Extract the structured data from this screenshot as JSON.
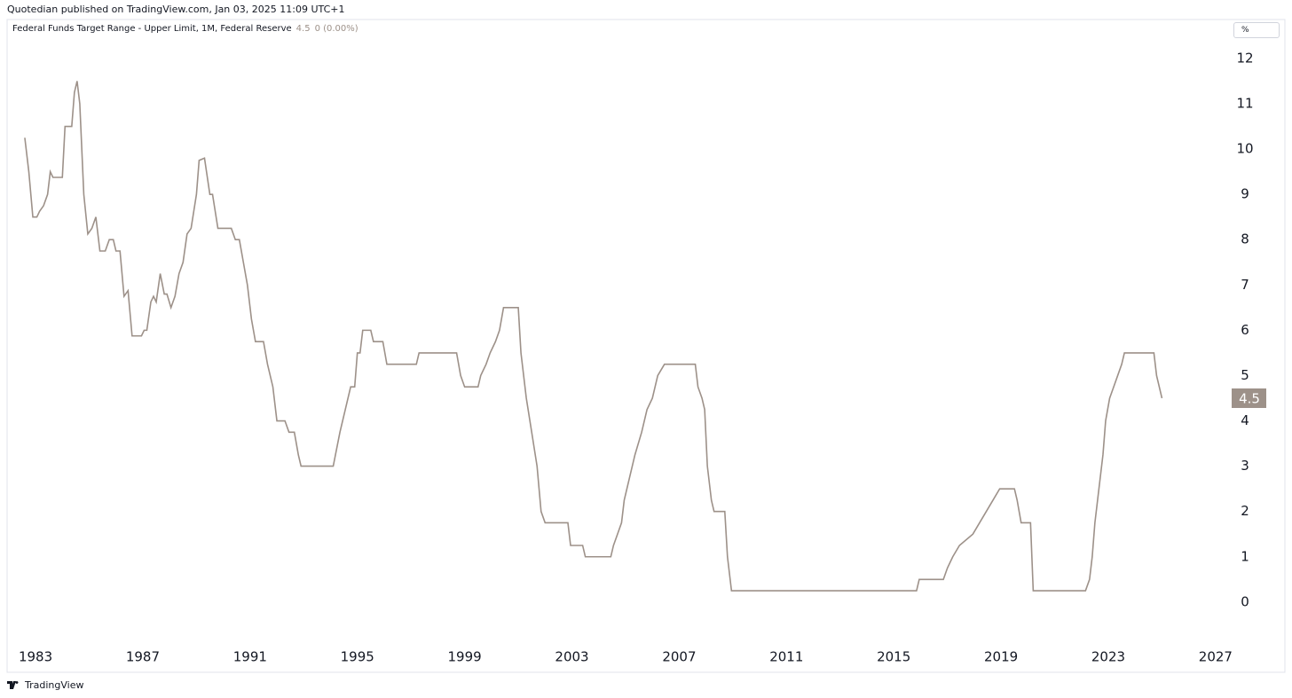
{
  "header": {
    "text": "Quotedian published on TradingView.com, Jan 03, 2025 11:09 UTC+1"
  },
  "chart_data": {
    "type": "line",
    "title": "Federal Funds Target Range - Upper Limit, 1M, Federal Reserve",
    "change": "0 (0.00%)",
    "unit": "%",
    "color": "#9d9189",
    "x": [
      1982.6,
      1982.75,
      1982.9,
      1983.05,
      1983.15,
      1983.3,
      1983.45,
      1983.55,
      1983.65,
      1984.0,
      1984.1,
      1984.35,
      1984.45,
      1984.55,
      1984.65,
      1984.8,
      1984.95,
      1985.1,
      1985.25,
      1985.4,
      1985.6,
      1985.75,
      1985.9,
      1986.0,
      1986.15,
      1986.3,
      1986.45,
      1986.6,
      1986.95,
      1987.05,
      1987.15,
      1987.3,
      1987.4,
      1987.5,
      1987.65,
      1987.8,
      1987.9,
      1988.05,
      1988.2,
      1988.35,
      1988.5,
      1988.65,
      1988.8,
      1989.0,
      1989.1,
      1989.3,
      1989.5,
      1989.6,
      1989.8,
      1990.3,
      1990.45,
      1990.6,
      1990.75,
      1990.9,
      1991.05,
      1991.2,
      1991.5,
      1991.65,
      1991.85,
      1992.0,
      1992.3,
      1992.45,
      1992.65,
      1992.8,
      1992.9,
      1994.1,
      1994.35,
      1994.55,
      1994.75,
      1994.9,
      1995.0,
      1995.1,
      1995.2,
      1995.5,
      1995.6,
      1995.95,
      1996.1,
      1997.2,
      1997.3,
      1998.7,
      1998.85,
      1999.0,
      1999.5,
      1999.6,
      1999.8,
      1999.95,
      2000.15,
      2000.3,
      2000.45,
      2001.0,
      2001.1,
      2001.3,
      2001.5,
      2001.7,
      2001.85,
      2002.0,
      2002.85,
      2002.95,
      2003.4,
      2003.5,
      2004.45,
      2004.55,
      2004.7,
      2004.85,
      2004.95,
      2005.15,
      2005.35,
      2005.6,
      2005.8,
      2006.0,
      2006.2,
      2006.45,
      2007.6,
      2007.7,
      2007.85,
      2007.95,
      2008.05,
      2008.2,
      2008.3,
      2008.7,
      2008.8,
      2008.95,
      2015.85,
      2015.95,
      2016.85,
      2017.0,
      2017.2,
      2017.45,
      2017.95,
      2018.2,
      2018.45,
      2018.7,
      2018.95,
      2019.5,
      2019.6,
      2019.75,
      2020.1,
      2020.2,
      2022.15,
      2022.3,
      2022.4,
      2022.5,
      2022.65,
      2022.8,
      2022.9,
      2023.05,
      2023.2,
      2023.35,
      2023.5,
      2023.6,
      2024.7,
      2024.8,
      2024.9,
      2025.0
    ],
    "values": [
      10.25,
      9.5,
      8.5,
      8.5,
      8.625,
      8.75,
      9.0,
      9.5,
      9.375,
      9.375,
      10.5,
      10.5,
      11.25,
      11.5,
      11.0,
      9.0,
      8.125,
      8.25,
      8.5,
      7.75,
      7.75,
      8.0,
      8.0,
      7.75,
      7.75,
      6.75,
      6.875,
      5.875,
      5.875,
      6.0,
      6.0,
      6.625,
      6.75,
      6.625,
      7.25,
      6.8,
      6.8,
      6.5,
      6.75,
      7.25,
      7.5,
      8.125,
      8.25,
      9.0,
      9.75,
      9.8,
      9.0,
      9.0,
      8.25,
      8.25,
      8.0,
      8.0,
      7.5,
      7.0,
      6.25,
      5.75,
      5.75,
      5.25,
      4.75,
      4.0,
      4.0,
      3.75,
      3.75,
      3.25,
      3.0,
      3.0,
      3.75,
      4.25,
      4.75,
      4.75,
      5.5,
      5.5,
      6.0,
      6.0,
      5.75,
      5.75,
      5.25,
      5.25,
      5.5,
      5.5,
      5.0,
      4.75,
      4.75,
      5.0,
      5.25,
      5.5,
      5.75,
      6.0,
      6.5,
      6.5,
      5.5,
      4.5,
      3.75,
      3.0,
      2.0,
      1.75,
      1.75,
      1.25,
      1.25,
      1.0,
      1.0,
      1.25,
      1.5,
      1.75,
      2.25,
      2.75,
      3.25,
      3.75,
      4.25,
      4.5,
      5.0,
      5.25,
      5.25,
      4.75,
      4.5,
      4.25,
      3.0,
      2.25,
      2.0,
      2.0,
      1.0,
      0.25,
      0.25,
      0.5,
      0.5,
      0.75,
      1.0,
      1.25,
      1.5,
      1.75,
      2.0,
      2.25,
      2.5,
      2.5,
      2.25,
      1.75,
      1.75,
      0.25,
      0.25,
      0.5,
      1.0,
      1.75,
      2.5,
      3.25,
      4.0,
      4.5,
      4.75,
      5.0,
      5.25,
      5.5,
      5.5,
      5.0,
      4.75,
      4.5
    ],
    "xlim": [
      1981.94,
      2027.5
    ],
    "xticks": [
      1983,
      1987,
      1991,
      1995,
      1999,
      2003,
      2007,
      2011,
      2015,
      2019,
      2023,
      2027
    ],
    "ylim": [
      -1.55,
      12.86
    ],
    "yticks": [
      0,
      1,
      2,
      3,
      4,
      5,
      6,
      7,
      8,
      9,
      10,
      11,
      12
    ],
    "grid": false
  },
  "footer": {
    "brand": "TradingView"
  }
}
